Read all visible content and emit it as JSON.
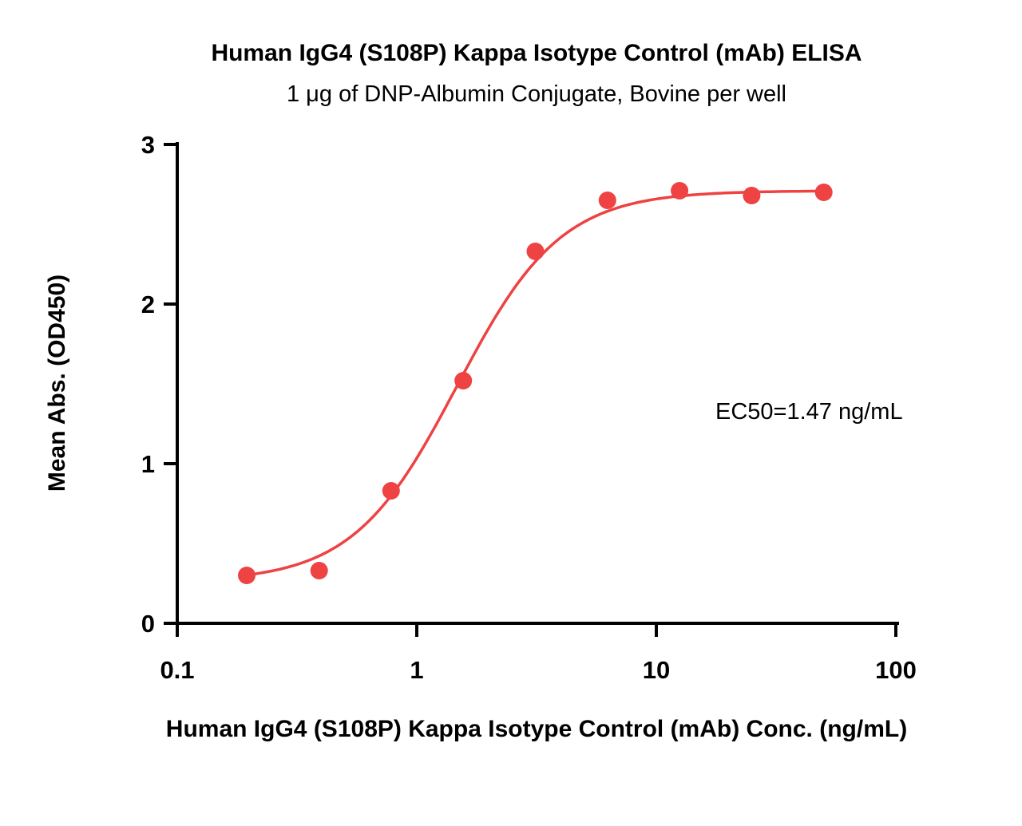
{
  "chart_data": {
    "type": "scatter",
    "title": "Human IgG4 (S108P) Kappa Isotype Control (mAb) ELISA",
    "subtitle": "1 μg of DNP-Albumin Conjugate, Bovine per well",
    "xlabel": "Human IgG4 (S108P) Kappa Isotype Control (mAb) Conc. (ng/mL)",
    "ylabel": "Mean Abs. (OD450)",
    "annotation": "EC50=1.47 ng/mL",
    "x_scale": "log10",
    "xlim": [
      0.1,
      100
    ],
    "ylim": [
      0,
      3
    ],
    "x_ticks": [
      0.1,
      1,
      10,
      100
    ],
    "x_tick_labels": [
      "0.1",
      "1",
      "10",
      "100"
    ],
    "y_ticks": [
      0,
      1,
      2,
      3
    ],
    "y_tick_labels": [
      "0",
      "1",
      "2",
      "3"
    ],
    "grid": false,
    "legend": "none",
    "points": {
      "x": [
        0.195,
        0.391,
        0.781,
        1.563,
        3.125,
        6.25,
        12.5,
        25,
        50
      ],
      "y": [
        0.3,
        0.33,
        0.83,
        1.52,
        2.33,
        2.65,
        2.71,
        2.68,
        2.7
      ]
    },
    "fit": {
      "model": "4PL-sigmoid",
      "bottom": 0.26,
      "top": 2.71,
      "ec50": 1.47,
      "hill": 2.0
    },
    "point_color": "#ee4243",
    "curve_color": "#ee4243",
    "axis_color": "#000000"
  }
}
